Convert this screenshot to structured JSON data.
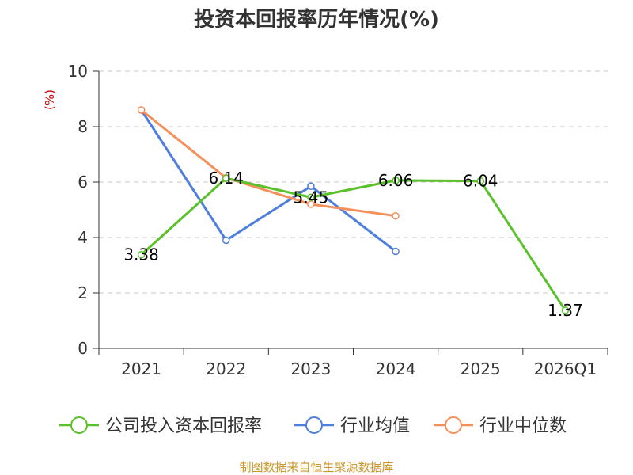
{
  "chart_data": {
    "type": "line",
    "title": "投资本回报率历年情况(%)",
    "unit_label": "(%)",
    "categories": [
      "2021",
      "2022",
      "2023",
      "2024",
      "2025",
      "2026Q1"
    ],
    "ylim": [
      0,
      10
    ],
    "yticks": [
      0,
      2,
      4,
      6,
      8,
      10
    ],
    "grid": true,
    "legend_position": "bottom",
    "series": [
      {
        "name": "公司投入资本回报率",
        "color": "#5ac12a",
        "values": [
          3.38,
          6.14,
          5.45,
          6.06,
          6.04,
          1.37
        ],
        "labels": [
          "3.38",
          "6.14",
          "5.45",
          "6.06",
          "6.04",
          "1.37"
        ]
      },
      {
        "name": "行业均值",
        "color": "#4f7fdd",
        "values": [
          8.6,
          3.9,
          5.85,
          3.5,
          null,
          null
        ]
      },
      {
        "name": "行业中位数",
        "color": "#f5905a",
        "values": [
          8.6,
          6.15,
          5.2,
          4.78,
          null,
          null
        ]
      }
    ],
    "source": "制图数据来自恒生聚源数据库"
  }
}
